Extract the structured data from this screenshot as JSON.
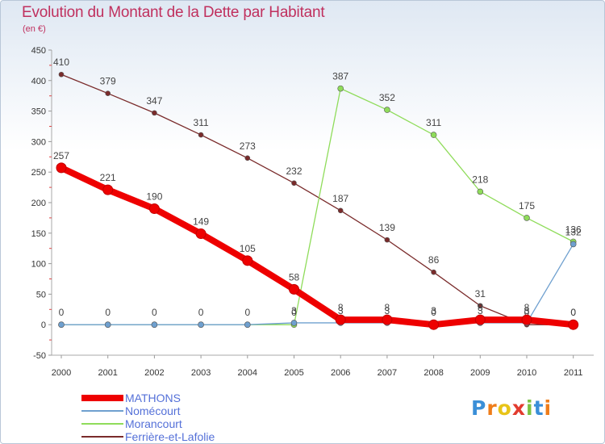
{
  "title": "Evolution du Montant de la Dette par Habitant",
  "subtitle": "(en €)",
  "logo": {
    "text": "Proxiti",
    "letters": [
      "P",
      "r",
      "o",
      "x",
      "i",
      "t",
      "i"
    ],
    "colors": [
      "#3a8fd8",
      "#ef7d1a",
      "#e8c418",
      "#e23b2e",
      "#7cc242",
      "#3a8fd8",
      "#ef7d1a"
    ]
  },
  "chart_data": {
    "type": "line",
    "title": "Evolution du Montant de la Dette par Habitant",
    "ylabel": "(en €)",
    "xlabel": "",
    "categories": [
      "2000",
      "2001",
      "2002",
      "2003",
      "2004",
      "2005",
      "2006",
      "2007",
      "2008",
      "2009",
      "2010",
      "2011"
    ],
    "ylim": [
      -50,
      450
    ],
    "yticks": [
      -50,
      0,
      50,
      100,
      150,
      200,
      250,
      300,
      350,
      400,
      450
    ],
    "grid": false,
    "legend": "bottom-left",
    "series": [
      {
        "name": "Ferrière-et-Lafolie",
        "color": "#7a2b2b",
        "width": 1.3,
        "marker": 3,
        "values": [
          410,
          379,
          347,
          311,
          273,
          232,
          187,
          139,
          86,
          31,
          0,
          0
        ],
        "labels": [
          "410",
          "379",
          "347",
          "311",
          "273",
          "232",
          "187",
          "139",
          "86",
          "31",
          "0",
          "0"
        ]
      },
      {
        "name": "Morancourt",
        "color": "#8fdc5a",
        "width": 1.3,
        "marker": 3.5,
        "values": [
          0,
          0,
          0,
          0,
          0,
          0,
          387,
          352,
          311,
          218,
          175,
          136
        ],
        "labels": [
          "0",
          "0",
          "0",
          "0",
          "0",
          "0",
          "387",
          "352",
          "311",
          "218",
          "175",
          "136"
        ]
      },
      {
        "name": "Nomécourt",
        "color": "#6fa0cf",
        "width": 1.3,
        "marker": 3.5,
        "values": [
          0,
          0,
          0,
          0,
          0,
          3,
          3,
          3,
          3,
          3,
          3,
          132
        ],
        "labels": [
          "",
          "",
          "",
          "",
          "",
          "3",
          "3",
          "3",
          "3",
          "3",
          "3",
          "132"
        ]
      },
      {
        "name": "MATHONS",
        "color": "#ee0000",
        "width": 8,
        "marker": 6,
        "values": [
          257,
          221,
          190,
          149,
          105,
          58,
          8,
          8,
          0,
          8,
          8,
          0
        ],
        "labels": [
          "257",
          "221",
          "190",
          "149",
          "105",
          "58",
          "8",
          "8",
          "0",
          "8",
          "8",
          "0"
        ]
      }
    ],
    "legend_order": [
      "MATHONS",
      "Nomécourt",
      "Morancourt",
      "Ferrière-et-Lafolie"
    ]
  }
}
